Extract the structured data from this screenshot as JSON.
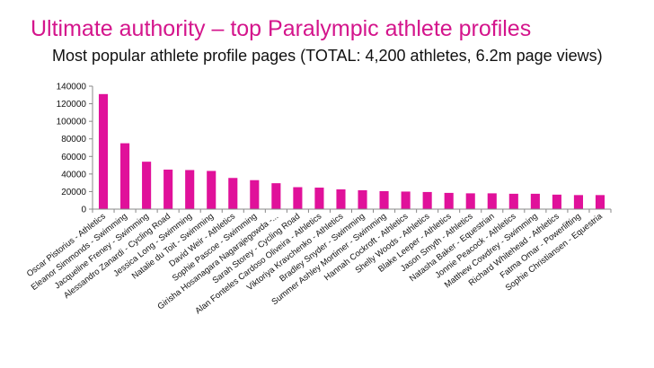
{
  "slide": {
    "title": "Ultimate authority – top Paralympic athlete profiles",
    "subtitle": "Most popular athlete profile pages (TOTAL: 4,200 athletes, 6.2m page views)"
  },
  "colors": {
    "title": "#d4158c",
    "bar": "#e0119a",
    "axis": "#888888",
    "grid": "#cccccc"
  },
  "chart_data": {
    "type": "bar",
    "title": "Most popular athlete profile pages (TOTAL: 4,200 athletes, 6.2m page views)",
    "xlabel": "",
    "ylabel": "",
    "ylim": [
      0,
      140000
    ],
    "yticks": [
      0,
      20000,
      40000,
      60000,
      80000,
      100000,
      120000,
      140000
    ],
    "grid": false,
    "legend": "none",
    "categories": [
      "Oscar Pistorius - Athletics",
      "Eleanor Simmonds - Swimming",
      "Jacqueline Freney - Swimming",
      "Alessandro Zanardi - Cycling Road",
      "Jessica Long - Swimming",
      "Natalie du Toit - Swimming",
      "David Weir - Athletics",
      "Sophie Pascoe - Swimming",
      "Girisha Hosanagara Nagarajegowda -...",
      "Sarah Storey - Cycling Road",
      "Alan Fonteles Cardoso Oliveira - Athletics",
      "Viktoriya Kravchenko - Athletics",
      "Bradley Snyder - Swimming",
      "Summer Ashley Mortimer - Swimming",
      "Hannah Cockroft - Athletics",
      "Shelly Woods - Athletics",
      "Blake Leeper - Athletics",
      "Jason Smyth - Athletics",
      "Natasha Baker - Equestrian",
      "Jonnie Peacock - Athletics",
      "Matthew Cowdrey - Swimming",
      "Richard Whitehead - Athletics",
      "Fatma Omar - Powerlifting",
      "Sophie Christiansen - Equestria"
    ],
    "values": [
      131000,
      75000,
      54000,
      45000,
      44500,
      43500,
      35500,
      33000,
      29500,
      25000,
      24500,
      22500,
      21500,
      20500,
      20000,
      19500,
      18500,
      18000,
      18000,
      17500,
      17500,
      16500,
      16000,
      16000
    ]
  }
}
